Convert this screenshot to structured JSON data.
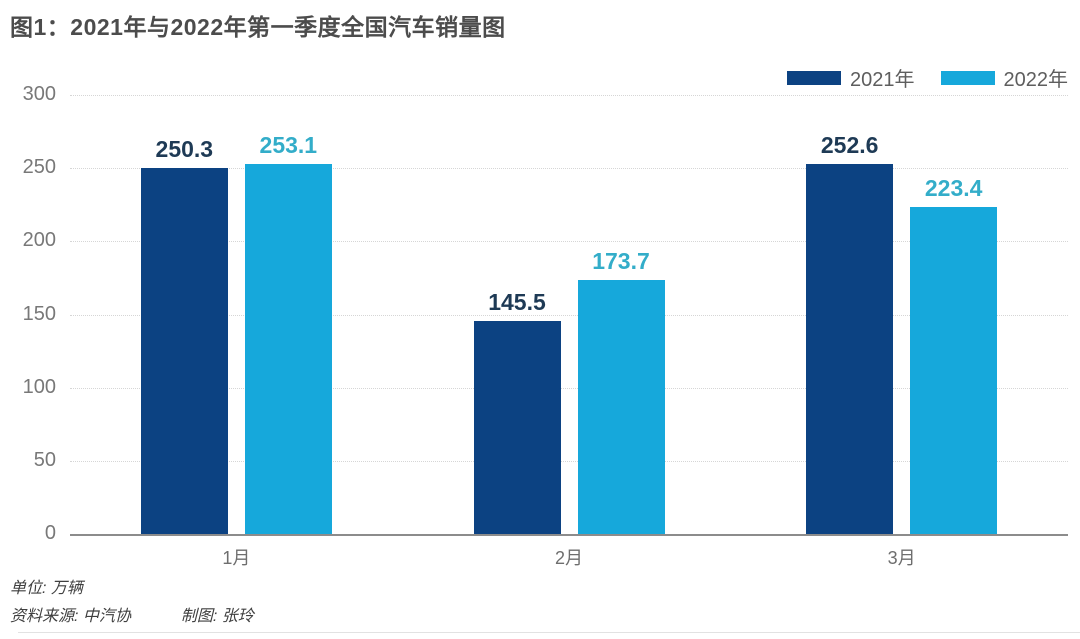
{
  "title": "图1：2021年与2022年第一季度全国汽车销量图",
  "legend": {
    "position": "top-right",
    "items": [
      {
        "label": "2021年",
        "color": "#0c4282"
      },
      {
        "label": "2022年",
        "color": "#16a8db"
      }
    ]
  },
  "chart_data": {
    "type": "bar",
    "title": "图1：2021年与2022年第一季度全国汽车销量图",
    "categories": [
      "1月",
      "2月",
      "3月"
    ],
    "series": [
      {
        "name": "2021年",
        "color": "#0c4282",
        "label_color": "#1e3a55",
        "values": [
          250.3,
          145.5,
          252.6
        ]
      },
      {
        "name": "2022年",
        "color": "#16a8db",
        "label_color": "#33adc9",
        "values": [
          253.1,
          173.7,
          223.4
        ]
      }
    ],
    "xlabel": "",
    "ylabel": "",
    "ylim": [
      0,
      300
    ],
    "yticks": [
      0,
      50,
      100,
      150,
      200,
      250,
      300
    ],
    "grid": "horizontal-dotted",
    "legend_position": "top-right",
    "data_labels": true
  },
  "notes": {
    "unit": "单位: 万辆",
    "source": "资料来源: 中汽协",
    "author": "制图: 张玲"
  },
  "colors": {
    "series_2021": "#0c4282",
    "series_2022": "#16a8db",
    "label_2021": "#1e3a55",
    "label_2022": "#33adc9",
    "title_text": "#4c4c4c",
    "axis_line": "#8c8c8c",
    "gridline": "#d6d6d6",
    "tick_text": "#787878"
  }
}
